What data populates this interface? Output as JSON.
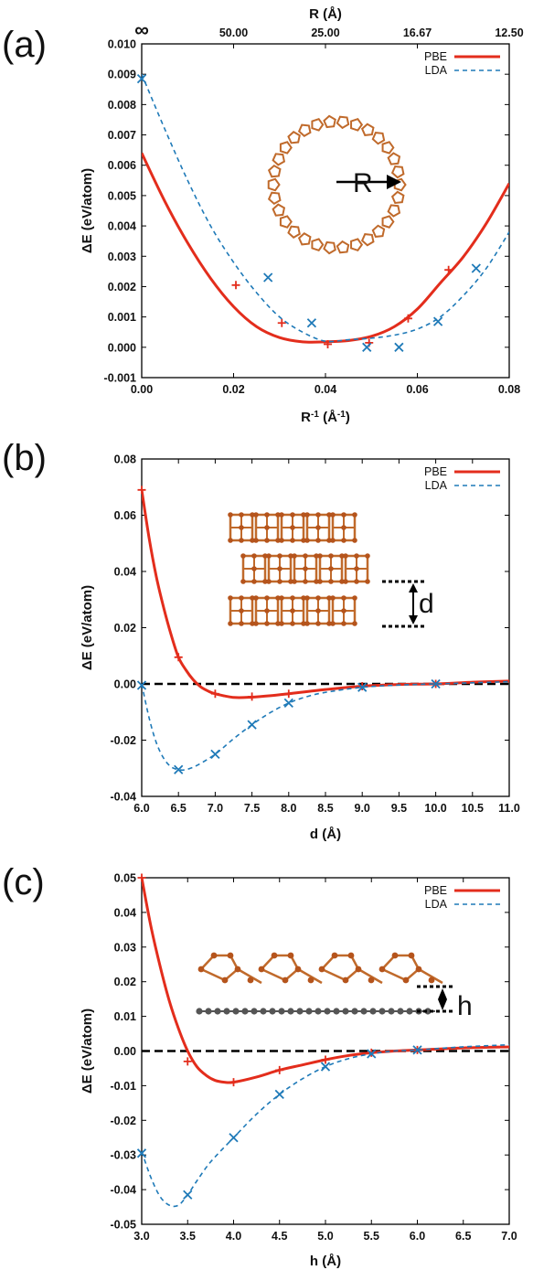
{
  "colors": {
    "pbe": "#e32d1c",
    "lda": "#1f7ab8",
    "atom": "#b5541c",
    "bond": "#c06a2b",
    "graphene": "#555555"
  },
  "chart_data": [
    {
      "panel": "(a)",
      "type": "line",
      "title": "",
      "xlabel": "R",
      "xlabel_sup": "-1",
      "xlabel_unit": " (Å",
      "xlabel_unit_sup": "-1",
      "xlabel_close": ")",
      "ylabel": "ΔE (eV/atom)",
      "top_axis_label": "R (Å)",
      "top_ticks": [
        {
          "label": "∞",
          "at": 0.0
        },
        {
          "label": "50.00",
          "at": 0.02
        },
        {
          "label": "25.00",
          "at": 0.04
        },
        {
          "label": "16.67",
          "at": 0.06
        },
        {
          "label": "12.50",
          "at": 0.08
        }
      ],
      "xlim": [
        0.0,
        0.08
      ],
      "ylim": [
        -0.001,
        0.01
      ],
      "xticks": [
        "0.00",
        "0.02",
        "0.04",
        "0.06",
        "0.08"
      ],
      "yticks": [
        "-0.001",
        "0.000",
        "0.001",
        "0.002",
        "0.003",
        "0.004",
        "0.005",
        "0.006",
        "0.007",
        "0.008",
        "0.009",
        "0.010"
      ],
      "legend": [
        "PBE",
        "LDA"
      ],
      "legend_position": "top-right",
      "inset_label": "R",
      "series": [
        {
          "name": "PBE",
          "style": "solid",
          "points": [
            [
              0.0205,
              0.00205
            ],
            [
              0.0305,
              0.0008
            ],
            [
              0.0405,
              0.0001
            ],
            [
              0.0495,
              0.00015
            ],
            [
              0.058,
              0.00095
            ],
            [
              0.0668,
              0.00255
            ]
          ],
          "curve": [
            [
              0.0,
              0.0064
            ],
            [
              0.005,
              0.00482
            ],
            [
              0.01,
              0.00344
            ],
            [
              0.015,
              0.00227
            ],
            [
              0.02,
              0.00134
            ],
            [
              0.025,
              0.00068
            ],
            [
              0.03,
              0.00032
            ],
            [
              0.035,
              0.00018
            ],
            [
              0.04,
              0.00018
            ],
            [
              0.045,
              0.00022
            ],
            [
              0.05,
              0.00036
            ],
            [
              0.055,
              0.00068
            ],
            [
              0.06,
              0.00126
            ],
            [
              0.065,
              0.00212
            ],
            [
              0.07,
              0.00298
            ],
            [
              0.075,
              0.00408
            ],
            [
              0.08,
              0.0054
            ]
          ]
        },
        {
          "name": "LDA",
          "style": "dashed",
          "points": [
            [
              0.0,
              0.00885
            ],
            [
              0.0275,
              0.0023
            ],
            [
              0.037,
              0.0008
            ],
            [
              0.049,
              0.0
            ],
            [
              0.056,
              0.0
            ],
            [
              0.0645,
              0.00085
            ],
            [
              0.0728,
              0.0026
            ]
          ],
          "curve": [
            [
              0.0,
              0.009
            ],
            [
              0.005,
              0.0072
            ],
            [
              0.01,
              0.0055
            ],
            [
              0.015,
              0.004
            ],
            [
              0.02,
              0.0028
            ],
            [
              0.025,
              0.0018
            ],
            [
              0.03,
              0.001
            ],
            [
              0.035,
              0.0005
            ],
            [
              0.04,
              0.0002
            ],
            [
              0.045,
              0.00025
            ],
            [
              0.05,
              0.0003
            ],
            [
              0.055,
              0.0004
            ],
            [
              0.06,
              0.0006
            ],
            [
              0.065,
              0.001
            ],
            [
              0.07,
              0.0017
            ],
            [
              0.075,
              0.0026
            ],
            [
              0.08,
              0.0038
            ]
          ]
        }
      ]
    },
    {
      "panel": "(b)",
      "type": "line",
      "title": "",
      "xlabel": "d (Å)",
      "ylabel": "ΔE (eV/atom)",
      "xlim": [
        6.0,
        11.0
      ],
      "ylim": [
        -0.04,
        0.08
      ],
      "xticks": [
        "6.0",
        "6.5",
        "7.0",
        "7.5",
        "8.0",
        "8.5",
        "9.0",
        "9.5",
        "10.0",
        "10.5",
        "11.0"
      ],
      "yticks": [
        "-0.04",
        "-0.02",
        "0.00",
        "0.02",
        "0.04",
        "0.06",
        "0.08"
      ],
      "legend": [
        "PBE",
        "LDA"
      ],
      "legend_position": "top-right",
      "inset_label": "d",
      "zero_line": true,
      "series": [
        {
          "name": "PBE",
          "style": "solid",
          "points": [
            [
              6.0,
              0.069
            ],
            [
              6.5,
              0.0095
            ],
            [
              7.0,
              -0.0035
            ],
            [
              7.5,
              -0.0045
            ],
            [
              8.0,
              -0.0035
            ],
            [
              9.0,
              -0.0008
            ],
            [
              10.0,
              0.0
            ]
          ],
          "curve": [
            [
              6.0,
              0.069
            ],
            [
              6.1,
              0.052
            ],
            [
              6.2,
              0.038
            ],
            [
              6.3,
              0.027
            ],
            [
              6.4,
              0.0175
            ],
            [
              6.5,
              0.0095
            ],
            [
              6.6,
              0.005
            ],
            [
              6.7,
              0.0015
            ],
            [
              6.8,
              -0.001
            ],
            [
              6.9,
              -0.0025
            ],
            [
              7.0,
              -0.0035
            ],
            [
              7.25,
              -0.0048
            ],
            [
              7.5,
              -0.0047
            ],
            [
              7.75,
              -0.0042
            ],
            [
              8.0,
              -0.0035
            ],
            [
              8.5,
              -0.002
            ],
            [
              9.0,
              -0.0008
            ],
            [
              9.5,
              -0.0002
            ],
            [
              10.0,
              0.0
            ],
            [
              10.5,
              0.0006
            ],
            [
              11.0,
              0.001
            ]
          ]
        },
        {
          "name": "LDA",
          "style": "dashed",
          "points": [
            [
              6.0,
              -0.0005
            ],
            [
              6.5,
              -0.0305
            ],
            [
              7.0,
              -0.025
            ],
            [
              7.5,
              -0.0145
            ],
            [
              8.0,
              -0.0068
            ],
            [
              9.0,
              -0.0012
            ],
            [
              10.0,
              0.0
            ]
          ],
          "curve": [
            [
              6.0,
              0.0
            ],
            [
              6.1,
              -0.012
            ],
            [
              6.2,
              -0.021
            ],
            [
              6.3,
              -0.0265
            ],
            [
              6.4,
              -0.0295
            ],
            [
              6.5,
              -0.0305
            ],
            [
              6.6,
              -0.0305
            ],
            [
              6.75,
              -0.029
            ],
            [
              7.0,
              -0.025
            ],
            [
              7.25,
              -0.0195
            ],
            [
              7.5,
              -0.0145
            ],
            [
              7.75,
              -0.0102
            ],
            [
              8.0,
              -0.0068
            ],
            [
              8.25,
              -0.0045
            ],
            [
              8.5,
              -0.003
            ],
            [
              9.0,
              -0.0012
            ],
            [
              9.5,
              -0.0004
            ],
            [
              10.0,
              0.0
            ],
            [
              10.5,
              0.0004
            ],
            [
              11.0,
              0.0008
            ]
          ]
        }
      ]
    },
    {
      "panel": "(c)",
      "type": "line",
      "title": "",
      "xlabel": "h (Å)",
      "ylabel": "ΔE (eV/atom)",
      "xlim": [
        3.0,
        7.0
      ],
      "ylim": [
        -0.05,
        0.05
      ],
      "xticks": [
        "3.0",
        "3.5",
        "4.0",
        "4.5",
        "5.0",
        "5.5",
        "6.0",
        "6.5",
        "7.0"
      ],
      "yticks": [
        "-0.05",
        "-0.04",
        "-0.03",
        "-0.02",
        "-0.01",
        "0.00",
        "0.01",
        "0.02",
        "0.03",
        "0.04",
        "0.05"
      ],
      "legend": [
        "PBE",
        "LDA"
      ],
      "legend_position": "top-right",
      "inset_label": "h",
      "zero_line": true,
      "series": [
        {
          "name": "PBE",
          "style": "solid",
          "points": [
            [
              3.0,
              0.05
            ],
            [
              3.5,
              -0.003
            ],
            [
              4.0,
              -0.009
            ],
            [
              4.5,
              -0.0055
            ],
            [
              5.0,
              -0.0025
            ],
            [
              5.5,
              -0.0005
            ],
            [
              6.0,
              0.0003
            ]
          ],
          "curve": [
            [
              3.0,
              0.05
            ],
            [
              3.1,
              0.036
            ],
            [
              3.2,
              0.0245
            ],
            [
              3.3,
              0.0145
            ],
            [
              3.4,
              0.0065
            ],
            [
              3.5,
              0.0
            ],
            [
              3.6,
              -0.0045
            ],
            [
              3.7,
              -0.007
            ],
            [
              3.8,
              -0.0085
            ],
            [
              3.9,
              -0.009
            ],
            [
              4.0,
              -0.009
            ],
            [
              4.25,
              -0.0075
            ],
            [
              4.5,
              -0.0055
            ],
            [
              4.75,
              -0.004
            ],
            [
              5.0,
              -0.0025
            ],
            [
              5.25,
              -0.0013
            ],
            [
              5.5,
              -0.0005
            ],
            [
              5.75,
              0.0
            ],
            [
              6.0,
              0.0003
            ],
            [
              6.5,
              0.0009
            ],
            [
              7.0,
              0.0012
            ]
          ]
        },
        {
          "name": "LDA",
          "style": "dashed",
          "points": [
            [
              3.0,
              -0.0295
            ],
            [
              3.5,
              -0.0415
            ],
            [
              4.0,
              -0.025
            ],
            [
              4.5,
              -0.0125
            ],
            [
              5.0,
              -0.0045
            ],
            [
              5.5,
              -0.0008
            ],
            [
              6.0,
              0.0003
            ]
          ],
          "curve": [
            [
              3.0,
              -0.029
            ],
            [
              3.1,
              -0.0365
            ],
            [
              3.2,
              -0.042
            ],
            [
              3.3,
              -0.0445
            ],
            [
              3.4,
              -0.0445
            ],
            [
              3.5,
              -0.0415
            ],
            [
              3.6,
              -0.0375
            ],
            [
              3.75,
              -0.032
            ],
            [
              4.0,
              -0.025
            ],
            [
              4.25,
              -0.0182
            ],
            [
              4.5,
              -0.0125
            ],
            [
              4.75,
              -0.008
            ],
            [
              5.0,
              -0.0045
            ],
            [
              5.25,
              -0.0022
            ],
            [
              5.5,
              -0.0008
            ],
            [
              5.75,
              0.0
            ],
            [
              6.0,
              0.0003
            ],
            [
              6.5,
              0.0012
            ],
            [
              7.0,
              0.0018
            ]
          ]
        }
      ]
    }
  ]
}
